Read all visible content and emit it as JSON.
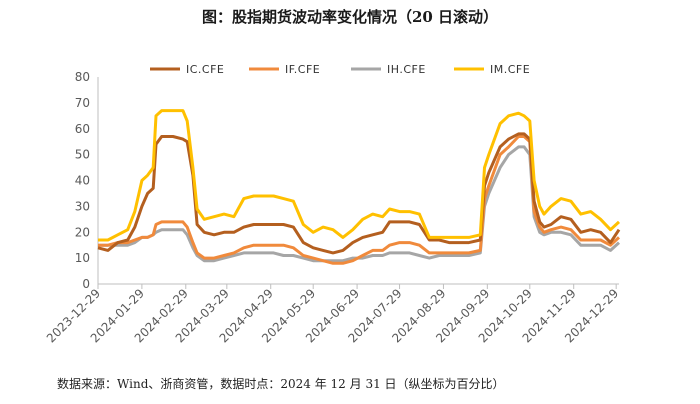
{
  "chart_data": {
    "type": "line",
    "title": "图：股指期货波动率变化情况（20 日滚动）",
    "xlabel": "",
    "ylabel": "",
    "ylim": [
      0,
      80
    ],
    "yticks": [
      0,
      10,
      20,
      30,
      40,
      50,
      60,
      70,
      80
    ],
    "xticks": [
      "2023-12-29",
      "2024-01-29",
      "2024-02-29",
      "2024-03-29",
      "2024-04-29",
      "2024-05-29",
      "2024-06-29",
      "2024-07-29",
      "2024-08-29",
      "2024-09-29",
      "2024-10-29",
      "2024-11-29",
      "2024-12-29"
    ],
    "grid": false,
    "legend_position": "top",
    "series": [
      {
        "name": "IC.CFE",
        "color": "#B45F1F",
        "points": [
          [
            "2023-12-29",
            14
          ],
          [
            "2024-01-05",
            13
          ],
          [
            "2024-01-12",
            16
          ],
          [
            "2024-01-19",
            17
          ],
          [
            "2024-01-24",
            22
          ],
          [
            "2024-01-29",
            30
          ],
          [
            "2024-02-02",
            35
          ],
          [
            "2024-02-06",
            37
          ],
          [
            "2024-02-08",
            54
          ],
          [
            "2024-02-12",
            57
          ],
          [
            "2024-02-20",
            57
          ],
          [
            "2024-02-27",
            56
          ],
          [
            "2024-03-01",
            55
          ],
          [
            "2024-03-05",
            42
          ],
          [
            "2024-03-08",
            23
          ],
          [
            "2024-03-13",
            20
          ],
          [
            "2024-03-20",
            19
          ],
          [
            "2024-03-27",
            20
          ],
          [
            "2024-04-03",
            20
          ],
          [
            "2024-04-10",
            22
          ],
          [
            "2024-04-17",
            23
          ],
          [
            "2024-04-24",
            23
          ],
          [
            "2024-05-01",
            23
          ],
          [
            "2024-05-08",
            23
          ],
          [
            "2024-05-15",
            22
          ],
          [
            "2024-05-22",
            16
          ],
          [
            "2024-05-29",
            14
          ],
          [
            "2024-06-05",
            13
          ],
          [
            "2024-06-12",
            12
          ],
          [
            "2024-06-19",
            13
          ],
          [
            "2024-06-26",
            16
          ],
          [
            "2024-07-03",
            18
          ],
          [
            "2024-07-10",
            19
          ],
          [
            "2024-07-17",
            20
          ],
          [
            "2024-07-22",
            24
          ],
          [
            "2024-07-29",
            24
          ],
          [
            "2024-08-05",
            24
          ],
          [
            "2024-08-12",
            23
          ],
          [
            "2024-08-19",
            17
          ],
          [
            "2024-08-26",
            17
          ],
          [
            "2024-09-02",
            16
          ],
          [
            "2024-09-09",
            16
          ],
          [
            "2024-09-16",
            16
          ],
          [
            "2024-09-24",
            17
          ],
          [
            "2024-09-27",
            38
          ],
          [
            "2024-09-30",
            43
          ],
          [
            "2024-10-08",
            53
          ],
          [
            "2024-10-14",
            56
          ],
          [
            "2024-10-21",
            58
          ],
          [
            "2024-10-25",
            58
          ],
          [
            "2024-10-29",
            56
          ],
          [
            "2024-11-01",
            32
          ],
          [
            "2024-11-05",
            24
          ],
          [
            "2024-11-08",
            22
          ],
          [
            "2024-11-13",
            23
          ],
          [
            "2024-11-20",
            26
          ],
          [
            "2024-11-27",
            25
          ],
          [
            "2024-12-04",
            20
          ],
          [
            "2024-12-11",
            21
          ],
          [
            "2024-12-18",
            20
          ],
          [
            "2024-12-25",
            16
          ],
          [
            "2024-12-31",
            21
          ]
        ]
      },
      {
        "name": "IF.CFE",
        "color": "#F08A3C",
        "points": [
          [
            "2023-12-29",
            15
          ],
          [
            "2024-01-05",
            15
          ],
          [
            "2024-01-12",
            16
          ],
          [
            "2024-01-19",
            16
          ],
          [
            "2024-01-24",
            17
          ],
          [
            "2024-01-29",
            18
          ],
          [
            "2024-02-02",
            18
          ],
          [
            "2024-02-06",
            19
          ],
          [
            "2024-02-08",
            23
          ],
          [
            "2024-02-12",
            24
          ],
          [
            "2024-02-20",
            24
          ],
          [
            "2024-02-27",
            24
          ],
          [
            "2024-03-01",
            22
          ],
          [
            "2024-03-05",
            16
          ],
          [
            "2024-03-08",
            12
          ],
          [
            "2024-03-13",
            10
          ],
          [
            "2024-03-20",
            10
          ],
          [
            "2024-03-27",
            11
          ],
          [
            "2024-04-03",
            12
          ],
          [
            "2024-04-10",
            14
          ],
          [
            "2024-04-17",
            15
          ],
          [
            "2024-04-24",
            15
          ],
          [
            "2024-05-01",
            15
          ],
          [
            "2024-05-08",
            15
          ],
          [
            "2024-05-15",
            14
          ],
          [
            "2024-05-22",
            11
          ],
          [
            "2024-05-29",
            10
          ],
          [
            "2024-06-05",
            9
          ],
          [
            "2024-06-12",
            8
          ],
          [
            "2024-06-19",
            8
          ],
          [
            "2024-06-26",
            9
          ],
          [
            "2024-07-03",
            11
          ],
          [
            "2024-07-10",
            13
          ],
          [
            "2024-07-17",
            13
          ],
          [
            "2024-07-22",
            15
          ],
          [
            "2024-07-29",
            16
          ],
          [
            "2024-08-05",
            16
          ],
          [
            "2024-08-12",
            15
          ],
          [
            "2024-08-19",
            12
          ],
          [
            "2024-08-26",
            12
          ],
          [
            "2024-09-02",
            12
          ],
          [
            "2024-09-09",
            12
          ],
          [
            "2024-09-16",
            12
          ],
          [
            "2024-09-24",
            13
          ],
          [
            "2024-09-27",
            33
          ],
          [
            "2024-09-30",
            38
          ],
          [
            "2024-10-08",
            50
          ],
          [
            "2024-10-14",
            53
          ],
          [
            "2024-10-21",
            57
          ],
          [
            "2024-10-25",
            57
          ],
          [
            "2024-10-29",
            55
          ],
          [
            "2024-11-01",
            28
          ],
          [
            "2024-11-05",
            22
          ],
          [
            "2024-11-08",
            20
          ],
          [
            "2024-11-13",
            21
          ],
          [
            "2024-11-20",
            22
          ],
          [
            "2024-11-27",
            21
          ],
          [
            "2024-12-04",
            17
          ],
          [
            "2024-12-11",
            17
          ],
          [
            "2024-12-18",
            17
          ],
          [
            "2024-12-25",
            15
          ],
          [
            "2024-12-31",
            18
          ]
        ]
      },
      {
        "name": "IH.CFE",
        "color": "#A6A6A6",
        "points": [
          [
            "2023-12-29",
            15
          ],
          [
            "2024-01-05",
            15
          ],
          [
            "2024-01-12",
            15
          ],
          [
            "2024-01-19",
            15
          ],
          [
            "2024-01-24",
            16
          ],
          [
            "2024-01-29",
            18
          ],
          [
            "2024-02-02",
            18
          ],
          [
            "2024-02-06",
            19
          ],
          [
            "2024-02-08",
            20
          ],
          [
            "2024-02-12",
            21
          ],
          [
            "2024-02-20",
            21
          ],
          [
            "2024-02-27",
            21
          ],
          [
            "2024-03-01",
            19
          ],
          [
            "2024-03-05",
            14
          ],
          [
            "2024-03-08",
            11
          ],
          [
            "2024-03-13",
            9
          ],
          [
            "2024-03-20",
            9
          ],
          [
            "2024-03-27",
            10
          ],
          [
            "2024-04-03",
            11
          ],
          [
            "2024-04-10",
            12
          ],
          [
            "2024-04-17",
            12
          ],
          [
            "2024-04-24",
            12
          ],
          [
            "2024-05-01",
            12
          ],
          [
            "2024-05-08",
            11
          ],
          [
            "2024-05-15",
            11
          ],
          [
            "2024-05-22",
            10
          ],
          [
            "2024-05-29",
            9
          ],
          [
            "2024-06-05",
            9
          ],
          [
            "2024-06-12",
            9
          ],
          [
            "2024-06-19",
            9
          ],
          [
            "2024-06-26",
            10
          ],
          [
            "2024-07-03",
            10
          ],
          [
            "2024-07-10",
            11
          ],
          [
            "2024-07-17",
            11
          ],
          [
            "2024-07-22",
            12
          ],
          [
            "2024-07-29",
            12
          ],
          [
            "2024-08-05",
            12
          ],
          [
            "2024-08-12",
            11
          ],
          [
            "2024-08-19",
            10
          ],
          [
            "2024-08-26",
            11
          ],
          [
            "2024-09-02",
            11
          ],
          [
            "2024-09-09",
            11
          ],
          [
            "2024-09-16",
            11
          ],
          [
            "2024-09-24",
            12
          ],
          [
            "2024-09-27",
            30
          ],
          [
            "2024-09-30",
            35
          ],
          [
            "2024-10-08",
            45
          ],
          [
            "2024-10-14",
            50
          ],
          [
            "2024-10-21",
            53
          ],
          [
            "2024-10-25",
            53
          ],
          [
            "2024-10-29",
            50
          ],
          [
            "2024-11-01",
            26
          ],
          [
            "2024-11-05",
            20
          ],
          [
            "2024-11-08",
            19
          ],
          [
            "2024-11-13",
            20
          ],
          [
            "2024-11-20",
            20
          ],
          [
            "2024-11-27",
            19
          ],
          [
            "2024-12-04",
            15
          ],
          [
            "2024-12-11",
            15
          ],
          [
            "2024-12-18",
            15
          ],
          [
            "2024-12-25",
            13
          ],
          [
            "2024-12-31",
            16
          ]
        ]
      },
      {
        "name": "IM.CFE",
        "color": "#FFC000",
        "points": [
          [
            "2023-12-29",
            17
          ],
          [
            "2024-01-05",
            17
          ],
          [
            "2024-01-12",
            19
          ],
          [
            "2024-01-19",
            21
          ],
          [
            "2024-01-24",
            28
          ],
          [
            "2024-01-29",
            40
          ],
          [
            "2024-02-02",
            42
          ],
          [
            "2024-02-06",
            45
          ],
          [
            "2024-02-08",
            65
          ],
          [
            "2024-02-12",
            67
          ],
          [
            "2024-02-20",
            67
          ],
          [
            "2024-02-27",
            67
          ],
          [
            "2024-03-01",
            63
          ],
          [
            "2024-03-05",
            45
          ],
          [
            "2024-03-08",
            29
          ],
          [
            "2024-03-13",
            25
          ],
          [
            "2024-03-20",
            26
          ],
          [
            "2024-03-27",
            27
          ],
          [
            "2024-04-03",
            26
          ],
          [
            "2024-04-10",
            33
          ],
          [
            "2024-04-17",
            34
          ],
          [
            "2024-04-24",
            34
          ],
          [
            "2024-05-01",
            34
          ],
          [
            "2024-05-08",
            33
          ],
          [
            "2024-05-15",
            32
          ],
          [
            "2024-05-22",
            23
          ],
          [
            "2024-05-29",
            20
          ],
          [
            "2024-06-05",
            22
          ],
          [
            "2024-06-12",
            21
          ],
          [
            "2024-06-19",
            18
          ],
          [
            "2024-06-26",
            21
          ],
          [
            "2024-07-03",
            25
          ],
          [
            "2024-07-10",
            27
          ],
          [
            "2024-07-17",
            26
          ],
          [
            "2024-07-22",
            29
          ],
          [
            "2024-07-29",
            28
          ],
          [
            "2024-08-05",
            28
          ],
          [
            "2024-08-12",
            27
          ],
          [
            "2024-08-19",
            18
          ],
          [
            "2024-08-26",
            18
          ],
          [
            "2024-09-02",
            18
          ],
          [
            "2024-09-09",
            18
          ],
          [
            "2024-09-16",
            18
          ],
          [
            "2024-09-24",
            19
          ],
          [
            "2024-09-27",
            45
          ],
          [
            "2024-09-30",
            50
          ],
          [
            "2024-10-08",
            62
          ],
          [
            "2024-10-14",
            65
          ],
          [
            "2024-10-21",
            66
          ],
          [
            "2024-10-25",
            65
          ],
          [
            "2024-10-29",
            63
          ],
          [
            "2024-11-01",
            40
          ],
          [
            "2024-11-05",
            30
          ],
          [
            "2024-11-08",
            27
          ],
          [
            "2024-11-13",
            30
          ],
          [
            "2024-11-20",
            33
          ],
          [
            "2024-11-27",
            32
          ],
          [
            "2024-12-04",
            27
          ],
          [
            "2024-12-11",
            28
          ],
          [
            "2024-12-18",
            25
          ],
          [
            "2024-12-25",
            21
          ],
          [
            "2024-12-31",
            24
          ]
        ]
      }
    ]
  },
  "source_note": "数据来源：Wind、浙商资管，数据时点：2024 年 12 月 31 日（纵坐标为百分比）"
}
